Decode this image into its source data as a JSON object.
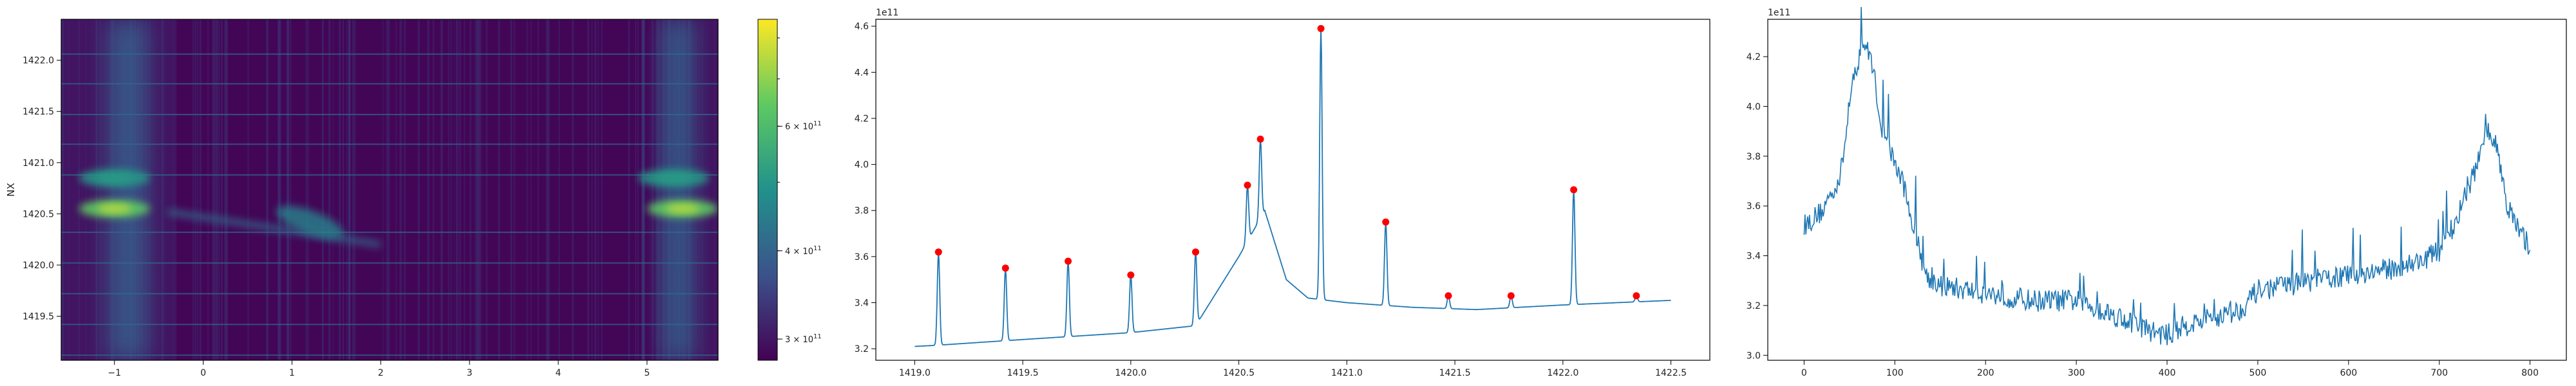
{
  "chart_data": [
    {
      "type": "heatmap",
      "title": "",
      "xlabel": "",
      "ylabel": "NX",
      "xlim": [
        -1.6,
        5.8
      ],
      "ylim": [
        1419.07,
        1422.4
      ],
      "x_ticks": [
        -1,
        0,
        1,
        2,
        3,
        4,
        5
      ],
      "y_ticks": [
        1419.5,
        1420.0,
        1420.5,
        1421.0,
        1421.5,
        1422.0
      ],
      "grid": false,
      "colormap": "viridis",
      "colorbar": {
        "scale": "log",
        "min": 280000000000.0,
        "max": 850000000000.0,
        "major_ticks": [
          {
            "value": 300000000000.0,
            "label_base": "3 × 10",
            "label_exp": "11"
          },
          {
            "value": 400000000000.0,
            "label_base": "4 × 10",
            "label_exp": "11"
          },
          {
            "value": 600000000000.0,
            "label_base": "6 × 10",
            "label_exp": "11"
          }
        ]
      },
      "features": {
        "bright_bands_x": [
          {
            "center": -0.85,
            "width": 0.45,
            "strength": 0.55
          },
          {
            "center": 5.35,
            "width": 0.35,
            "strength": 0.6
          }
        ],
        "hot_spots": [
          {
            "x": -1.0,
            "y": 1420.55,
            "strength": 1.0
          },
          {
            "x": -1.0,
            "y": 1420.85,
            "strength": 0.6
          },
          {
            "x": 5.4,
            "y": 1420.55,
            "strength": 1.0
          },
          {
            "x": 5.3,
            "y": 1420.85,
            "strength": 0.6
          }
        ],
        "streak": {
          "from_x": -0.4,
          "from_y": 1420.52,
          "to_x": 2.0,
          "to_y": 1420.2,
          "strength": 0.35
        },
        "blob": {
          "x": 1.2,
          "y": 1420.42,
          "strength": 0.45
        },
        "horizontal_lines_y": [
          1419.12,
          1419.42,
          1419.72,
          1420.02,
          1420.32,
          1420.88,
          1421.18,
          1421.47,
          1421.77,
          1422.06
        ],
        "dark_region_x": [
          -0.3,
          5.1
        ]
      }
    },
    {
      "type": "line",
      "title": "",
      "xlabel": "",
      "ylabel": "",
      "offset_text": "1e11",
      "xlim": [
        1418.82,
        1422.68
      ],
      "ylim": [
        3.15,
        4.63
      ],
      "x_ticks": [
        1419.0,
        1419.5,
        1420.0,
        1420.5,
        1421.0,
        1421.5,
        1422.0,
        1422.5
      ],
      "x_tick_labels": [
        "1419.0",
        "1419.5",
        "1420.0",
        "1420.5",
        "1421.0",
        "1421.5",
        "1422.0",
        "1422.5"
      ],
      "y_ticks": [
        3.2,
        3.4,
        3.6,
        3.8,
        4.0,
        4.2,
        4.4,
        4.6
      ],
      "y_tick_labels": [
        "3.2",
        "3.4",
        "3.6",
        "3.8",
        "4.0",
        "4.2",
        "4.4",
        "4.6"
      ],
      "grid": false,
      "line_color": "#1f77b4",
      "marker_color": "#ff0000",
      "baseline": [
        [
          1419.0,
          3.21
        ],
        [
          1419.1,
          3.215
        ],
        [
          1419.5,
          3.24
        ],
        [
          1420.0,
          3.27
        ],
        [
          1420.3,
          3.3
        ],
        [
          1420.4,
          3.45
        ],
        [
          1420.5,
          3.6
        ],
        [
          1420.62,
          3.8
        ],
        [
          1420.72,
          3.5
        ],
        [
          1420.82,
          3.42
        ],
        [
          1421.0,
          3.4
        ],
        [
          1421.3,
          3.38
        ],
        [
          1421.6,
          3.37
        ],
        [
          1422.0,
          3.39
        ],
        [
          1422.5,
          3.41
        ]
      ],
      "peaks_x": [
        1419.11,
        1419.42,
        1419.71,
        1420.0,
        1420.3,
        1420.54,
        1420.6,
        1420.88,
        1421.18,
        1421.47,
        1421.76,
        1422.05,
        1422.34
      ],
      "peaks_y": [
        3.62,
        3.55,
        3.58,
        3.52,
        3.62,
        3.91,
        4.11,
        4.59,
        3.75,
        3.43,
        3.43,
        3.89,
        3.43
      ]
    },
    {
      "type": "line",
      "title": "",
      "xlabel": "",
      "ylabel": "",
      "offset_text": "1e11",
      "xlim": [
        -40,
        840
      ],
      "ylim": [
        2.98,
        4.35
      ],
      "x_ticks": [
        0,
        100,
        200,
        300,
        400,
        500,
        600,
        700,
        800
      ],
      "x_tick_labels": [
        "0",
        "100",
        "200",
        "300",
        "400",
        "500",
        "600",
        "700",
        "800"
      ],
      "y_ticks": [
        3.0,
        3.2,
        3.4,
        3.6,
        3.8,
        4.0,
        4.2
      ],
      "y_tick_labels": [
        "3.0",
        "3.2",
        "3.4",
        "3.6",
        "3.8",
        "4.0",
        "4.2"
      ],
      "grid": false,
      "line_color": "#1f77b4",
      "x": [
        0,
        20,
        40,
        55,
        65,
        75,
        85,
        95,
        110,
        125,
        135,
        150,
        200,
        250,
        300,
        350,
        380,
        400,
        420,
        450,
        480,
        500,
        530,
        560,
        600,
        650,
        680,
        700,
        720,
        740,
        755,
        765,
        775,
        790,
        800
      ],
      "y": [
        3.52,
        3.58,
        3.72,
        4.12,
        4.26,
        4.18,
        3.92,
        3.82,
        3.68,
        3.45,
        3.32,
        3.28,
        3.25,
        3.22,
        3.22,
        3.15,
        3.1,
        3.08,
        3.12,
        3.15,
        3.18,
        3.26,
        3.28,
        3.3,
        3.32,
        3.35,
        3.38,
        3.42,
        3.55,
        3.75,
        3.9,
        3.82,
        3.6,
        3.48,
        3.44
      ],
      "noise_amplitude": 0.045
    }
  ]
}
